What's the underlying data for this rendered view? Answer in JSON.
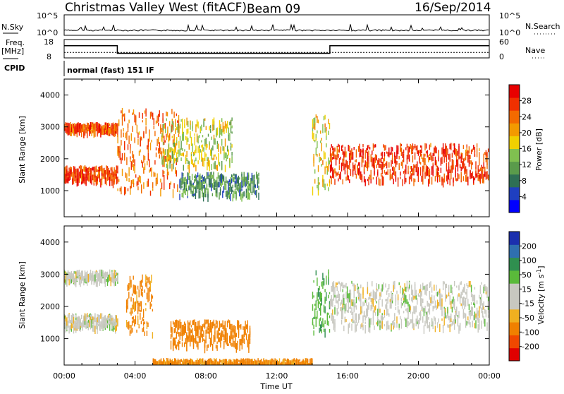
{
  "header": {
    "station": "Christmas Valley West (fitACF)",
    "beam": "Beam 09",
    "date": "16/Sep/2014"
  },
  "status": {
    "nsky_label": "N.Sky",
    "nsky_ticks": [
      "10^5",
      "10^0"
    ],
    "nsearch_label": "N.Search",
    "nsearch_ticks": [
      "10^5",
      "10^0"
    ],
    "freq_label": [
      "Freq.",
      "[MHz]"
    ],
    "freq_ticks": [
      "18",
      "8"
    ],
    "nave_label": "Nave",
    "nave_ticks": [
      "60",
      "0"
    ],
    "cpid_label": "CPID",
    "cpid_value": "normal (fast) 151 IF",
    "freq_trace": [
      {
        "t_hours": 0,
        "mhz": 14.6
      },
      {
        "t_hours": 3.0,
        "mhz": 14.6
      },
      {
        "t_hours": 3.0,
        "mhz": 10.5
      },
      {
        "t_hours": 15.0,
        "mhz": 10.5
      },
      {
        "t_hours": 15.0,
        "mhz": 14.6
      },
      {
        "t_hours": 24.0,
        "mhz": 14.6
      }
    ],
    "nave_level": 18
  },
  "chart_data": [
    {
      "type": "heatmap",
      "quantity": "Power",
      "ylabel": "Slant Range [km]",
      "yticks": [
        "1000",
        "2000",
        "3000",
        "4000"
      ],
      "ylim": [
        180,
        4500
      ],
      "xlim_hours": [
        0,
        24
      ],
      "colorbar": {
        "label": "Power [dB]",
        "ticks": [
          "4",
          "8",
          "12",
          "16",
          "20",
          "24",
          "28"
        ],
        "colors": [
          "#0000ff",
          "#1f3fc0",
          "#2e6f55",
          "#5a9b4b",
          "#80c050",
          "#f0d000",
          "#f39a00",
          "#f36a00",
          "#f03000",
          "#e80000"
        ]
      },
      "echo_regions": [
        {
          "t": [
            0.0,
            3.0
          ],
          "range_km": [
            1350,
            1800
          ],
          "db": 27
        },
        {
          "t": [
            0.0,
            3.0
          ],
          "range_km": [
            2900,
            3150
          ],
          "db": 26
        },
        {
          "t": [
            3.0,
            6.5
          ],
          "range_km": [
            1000,
            3600
          ],
          "db": 24
        },
        {
          "t": [
            5.5,
            9.5
          ],
          "range_km": [
            1800,
            3300
          ],
          "db": 16
        },
        {
          "t": [
            6.5,
            11.0
          ],
          "range_km": [
            900,
            1600
          ],
          "db": 10
        },
        {
          "t": [
            14.0,
            15.0
          ],
          "range_km": [
            1100,
            3400
          ],
          "db": 18
        },
        {
          "t": [
            15.0,
            24.0
          ],
          "range_km": [
            1350,
            2500
          ],
          "db": 27
        }
      ]
    },
    {
      "type": "heatmap",
      "quantity": "Velocity",
      "ylabel": "Slant Range [km]",
      "yticks": [
        "1000",
        "2000",
        "3000",
        "4000"
      ],
      "ylim": [
        180,
        4500
      ],
      "xlim_hours": [
        0,
        24
      ],
      "xlabel": "Time UT",
      "xticks": [
        "00:00",
        "04:00",
        "08:00",
        "12:00",
        "16:00",
        "20:00",
        "00:00"
      ],
      "colorbar": {
        "label": "Velocity [m s^-1]",
        "ticks": [
          "200",
          "100",
          "50",
          "15",
          "-15",
          "-50",
          "-100",
          "-200"
        ],
        "colors": [
          "#1b2fae",
          "#2f6fb0",
          "#2f8f4f",
          "#5aba3a",
          "#c8c8c0",
          "#c8c8c0",
          "#f0b020",
          "#f08000",
          "#f04800",
          "#e00000"
        ]
      },
      "echo_regions": [
        {
          "t": [
            0.0,
            3.0
          ],
          "range_km": [
            1400,
            1800
          ],
          "mps": 0
        },
        {
          "t": [
            0.0,
            3.0
          ],
          "range_km": [
            2850,
            3150
          ],
          "mps": 0
        },
        {
          "t": [
            3.5,
            5.0
          ],
          "range_km": [
            1200,
            3000
          ],
          "mps": -60
        },
        {
          "t": [
            6.0,
            10.5
          ],
          "range_km": [
            800,
            1600
          ],
          "mps": -70
        },
        {
          "t": [
            14.0,
            15.0
          ],
          "range_km": [
            1200,
            3200
          ],
          "mps": 40
        },
        {
          "t": [
            15.0,
            24.0
          ],
          "range_km": [
            1400,
            2800
          ],
          "mps": 0
        },
        {
          "t": [
            5.0,
            14.0
          ],
          "range_km": [
            180,
            400
          ],
          "mps": -60
        }
      ]
    }
  ]
}
